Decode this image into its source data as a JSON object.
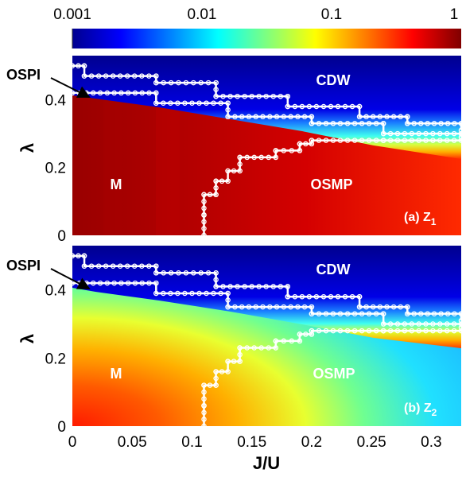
{
  "colorbar": {
    "tick_labels": [
      "0.001",
      "0.01",
      "0.1",
      "1"
    ],
    "values": [
      0.001,
      0.01,
      0.1,
      1
    ],
    "scale": "log",
    "colormap": "jet"
  },
  "chart_data": [
    {
      "type": "heatmap",
      "panel_label": "(a) Z",
      "panel_subscript": "1",
      "xlabel": "",
      "ylabel": "λ",
      "xlim": [
        0,
        0.325
      ],
      "ylim": [
        0,
        0.53
      ],
      "yticks": [
        0,
        0.2,
        0.4
      ],
      "ytick_labels": [
        "0",
        "0.2",
        "0.4"
      ],
      "region_labels": [
        "CDW",
        "M",
        "OSMP"
      ],
      "annotation": "OSPI",
      "upper_boundary": [
        [
          0,
          0.5
        ],
        [
          0.01,
          0.47
        ],
        [
          0.07,
          0.45
        ],
        [
          0.12,
          0.41
        ],
        [
          0.18,
          0.38
        ],
        [
          0.24,
          0.35
        ],
        [
          0.28,
          0.33
        ],
        [
          0.325,
          0.31
        ]
      ],
      "lower_boundary": [
        [
          0,
          0.42
        ],
        [
          0.07,
          0.39
        ],
        [
          0.13,
          0.35
        ],
        [
          0.2,
          0.33
        ],
        [
          0.26,
          0.3
        ],
        [
          0.325,
          0.29
        ]
      ],
      "osmp_boundary": [
        [
          0.11,
          0
        ],
        [
          0.11,
          0.06
        ],
        [
          0.12,
          0.12
        ],
        [
          0.13,
          0.16
        ],
        [
          0.14,
          0.19
        ],
        [
          0.17,
          0.23
        ],
        [
          0.19,
          0.25
        ],
        [
          0.2,
          0.27
        ],
        [
          0.26,
          0.28
        ],
        [
          0.325,
          0.28
        ]
      ]
    },
    {
      "type": "heatmap",
      "panel_label": "(b) Z",
      "panel_subscript": "2",
      "xlabel": "J/U",
      "ylabel": "λ",
      "xlim": [
        0,
        0.325
      ],
      "ylim": [
        0,
        0.53
      ],
      "xticks": [
        0,
        0.05,
        0.1,
        0.15,
        0.2,
        0.25,
        0.3
      ],
      "xtick_labels": [
        "0",
        "0.05",
        "0.1",
        "0.15",
        "0.2",
        "0.25",
        "0.3"
      ],
      "yticks": [
        0,
        0.2,
        0.4
      ],
      "ytick_labels": [
        "0",
        "0.2",
        "0.4"
      ],
      "region_labels": [
        "CDW",
        "M",
        "OSMP"
      ],
      "annotation": "OSPI",
      "upper_boundary": [
        [
          0,
          0.5
        ],
        [
          0.01,
          0.47
        ],
        [
          0.07,
          0.45
        ],
        [
          0.12,
          0.41
        ],
        [
          0.18,
          0.38
        ],
        [
          0.24,
          0.35
        ],
        [
          0.28,
          0.33
        ],
        [
          0.325,
          0.31
        ]
      ],
      "lower_boundary": [
        [
          0,
          0.42
        ],
        [
          0.07,
          0.39
        ],
        [
          0.13,
          0.35
        ],
        [
          0.2,
          0.33
        ],
        [
          0.26,
          0.3
        ],
        [
          0.325,
          0.29
        ]
      ],
      "osmp_boundary": [
        [
          0.11,
          0
        ],
        [
          0.11,
          0.06
        ],
        [
          0.12,
          0.12
        ],
        [
          0.13,
          0.16
        ],
        [
          0.14,
          0.19
        ],
        [
          0.17,
          0.23
        ],
        [
          0.19,
          0.25
        ],
        [
          0.2,
          0.27
        ],
        [
          0.26,
          0.28
        ],
        [
          0.325,
          0.28
        ]
      ]
    }
  ]
}
